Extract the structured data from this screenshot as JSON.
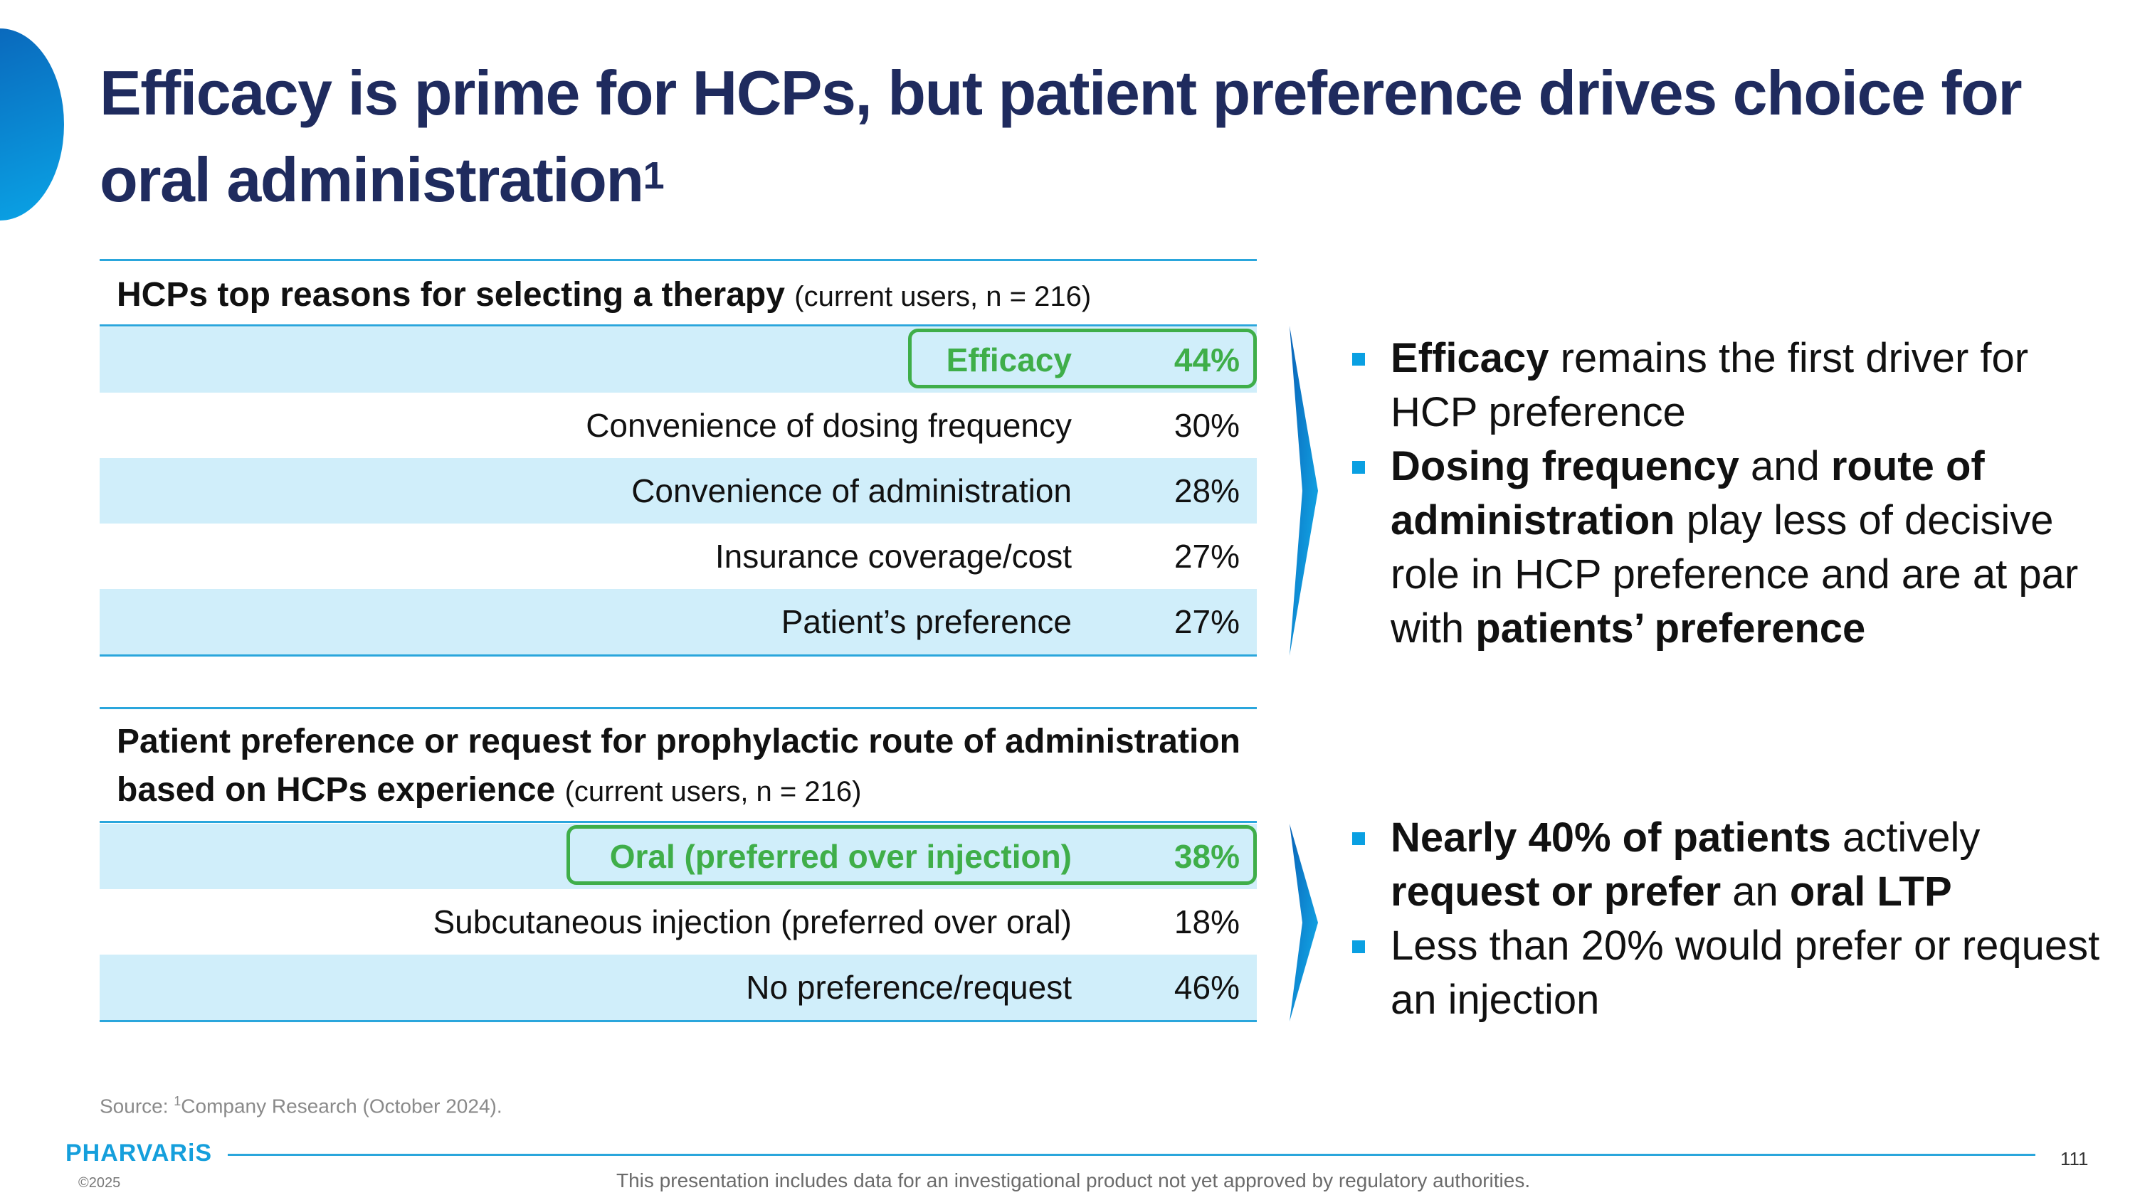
{
  "title": {
    "text": "Efficacy is prime for HCPs, but patient preference drives choice for oral administration",
    "superscript": "1"
  },
  "table1": {
    "heading_bold": "HCPs top reasons for selecting a therapy",
    "heading_sub": "(current users, n = 216)",
    "rows": [
      {
        "label": "Efficacy",
        "value": "44%",
        "highlight": true
      },
      {
        "label": "Convenience of dosing frequency",
        "value": "30%"
      },
      {
        "label": "Convenience of administration",
        "value": "28%"
      },
      {
        "label": "Insurance coverage/cost",
        "value": "27%"
      },
      {
        "label": "Patient’s preference",
        "value": "27%"
      }
    ]
  },
  "table2": {
    "heading_line1": "Patient preference or request for prophylactic route of administration",
    "heading_line2_bold": "based on HCPs experience",
    "heading_sub": "(current users, n = 216)",
    "rows": [
      {
        "label": "Oral (preferred over injection)",
        "value": "38%",
        "highlight": true
      },
      {
        "label": "Subcutaneous injection (preferred over oral)",
        "value": "18%"
      },
      {
        "label": "No preference/request",
        "value": "46%"
      }
    ]
  },
  "bullets1": [
    {
      "b1": "Efficacy",
      "t1": " remains the first driver for HCP preference"
    },
    {
      "b1": "Dosing frequency",
      "t1": " and ",
      "b2": "route of administration",
      "t2": " play less of decisive role in HCP preference and are at par with ",
      "b3": "patients’ preference"
    }
  ],
  "bullets2": [
    {
      "b1": "Nearly 40% of patients",
      "t1": " actively ",
      "b2": "request or prefer",
      "t2": " an ",
      "b3": "oral LTP"
    },
    {
      "t1": "Less than 20% would prefer or request an injection"
    }
  ],
  "source": {
    "prefix": "Source: ",
    "sup": "1",
    "text": "Company Research (October 2024)."
  },
  "footer": {
    "logo": "PHARVARiS",
    "copyright": "©2025",
    "page_number": "111",
    "disclaimer": "This presentation includes data for an investigational product not yet approved by regulatory authorities."
  },
  "colors": {
    "title": "#1f2b5e",
    "accent": "#0aa0e2",
    "highlight": "#3fae49",
    "row_shade": "#d0eefa"
  }
}
